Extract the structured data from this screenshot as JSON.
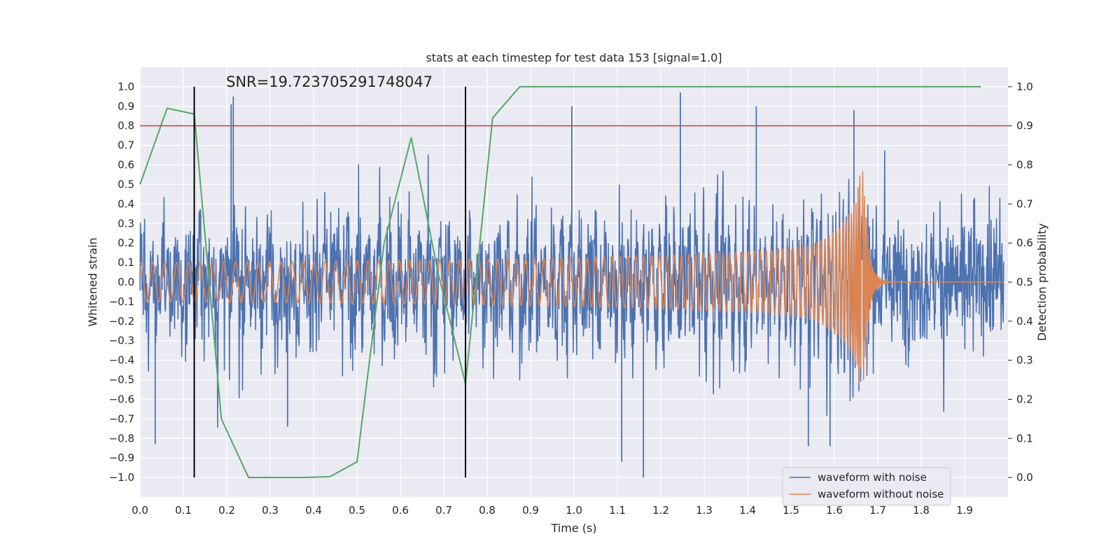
{
  "chart_data": {
    "type": "line",
    "title": "stats at each timestep for test data 153 [signal=1.0]",
    "xlabel": "Time (s)",
    "ylabel": "Whitened strain",
    "y2label": "Detection probability",
    "annotation": "SNR=19.723705291748047",
    "xlim": [
      0.0,
      2.0
    ],
    "ylim": [
      -1.1,
      1.1
    ],
    "y2lim": [
      -0.05,
      1.05
    ],
    "x_ticks": [
      "0.0",
      "0.1",
      "0.2",
      "0.3",
      "0.4",
      "0.5",
      "0.6",
      "0.7",
      "0.8",
      "0.9",
      "1.0",
      "1.1",
      "1.2",
      "1.3",
      "1.4",
      "1.5",
      "1.6",
      "1.7",
      "1.8",
      "1.9"
    ],
    "y_ticks": [
      "1.0",
      "0.9",
      "0.8",
      "0.7",
      "0.6",
      "0.5",
      "0.4",
      "0.3",
      "0.2",
      "0.1",
      "0.0",
      "−0.1",
      "−0.2",
      "−0.3",
      "−0.4",
      "−0.5",
      "−0.6",
      "−0.7",
      "−0.8",
      "−0.9",
      "−1.0"
    ],
    "y2_ticks": [
      "1.0",
      "0.9",
      "0.8",
      "0.7",
      "0.6",
      "0.5",
      "0.4",
      "0.3",
      "0.2",
      "0.1",
      "0.0"
    ],
    "grid": true,
    "legend_position": "lower-right",
    "series": [
      {
        "name": "waveform with noise",
        "color": "#4c72b0",
        "description_points": "dense noisy strain, amplitude ~±0.5 with spikes up to ±1.0",
        "spikes": [
          {
            "x": 0.21,
            "y": 0.91
          },
          {
            "x": 0.215,
            "y": 0.95
          },
          {
            "x": 0.035,
            "y": -0.83
          },
          {
            "x": 0.34,
            "y": -0.74
          },
          {
            "x": 1.16,
            "y": -1.0
          },
          {
            "x": 1.245,
            "y": 0.97
          },
          {
            "x": 1.11,
            "y": -0.92
          },
          {
            "x": 1.645,
            "y": 0.88
          },
          {
            "x": 0.995,
            "y": 0.9
          },
          {
            "x": 1.54,
            "y": -0.84
          },
          {
            "x": 1.59,
            "y": -0.84
          },
          {
            "x": 1.42,
            "y": 0.9
          }
        ]
      },
      {
        "name": "waveform without noise",
        "color": "#dd8452",
        "description_points": "chirp: amplitude 0.1 growing to ~0.65, frequency increasing, merger ~1.66 s then ringdown to 0"
      },
      {
        "color": "#55a868",
        "axis": "right",
        "x": [
          0.0,
          0.0625,
          0.125,
          0.1875,
          0.25,
          0.3125,
          0.375,
          0.4375,
          0.5,
          0.5625,
          0.625,
          0.6875,
          0.75,
          0.8125,
          0.875,
          0.9375,
          1.0,
          1.0625,
          1.125,
          1.1875,
          1.25,
          1.3125,
          1.375,
          1.4375,
          1.5,
          1.5625,
          1.625,
          1.6875,
          1.75,
          1.8125,
          1.875,
          1.9375
        ],
        "values": [
          0.75,
          0.945,
          0.93,
          0.15,
          0.0,
          0.0,
          0.0,
          0.002,
          0.04,
          0.6,
          0.87,
          0.52,
          0.24,
          0.92,
          1.0,
          1.0,
          1.0,
          1.0,
          1.0,
          1.0,
          1.0,
          1.0,
          1.0,
          1.0,
          1.0,
          1.0,
          1.0,
          1.0,
          1.0,
          1.0,
          1.0,
          1.0
        ]
      },
      {
        "color": "#c44e52",
        "axis": "right",
        "threshold": 0.9
      }
    ],
    "vlines": [
      {
        "x": 0.125,
        "color": "#000000"
      },
      {
        "x": 0.75,
        "color": "#000000"
      }
    ],
    "legend": [
      "waveform with noise",
      "waveform without noise"
    ]
  }
}
